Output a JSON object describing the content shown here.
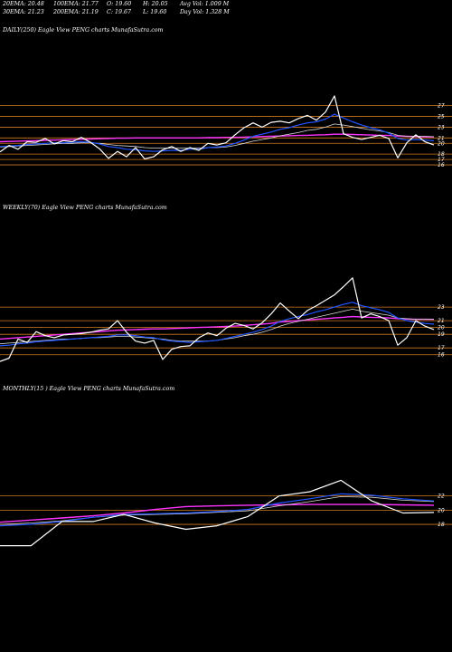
{
  "header": {
    "ema20": "20EMA: 20.48",
    "ema100": "100EMA: 21.77",
    "open": "O: 19.60",
    "high": "H: 20.05",
    "avg_vol": "Avg Vol: 1.009 M",
    "ema30": "30EMA: 21.23",
    "ema200": "200EMA: 21.19",
    "close": "C: 19.67",
    "low": "L: 19.60",
    "day_vol": "Day Vol: 1.328 M"
  },
  "colors": {
    "background": "#000000",
    "price": "#ffffff",
    "ema_fast": "#2255ff",
    "ema_slow": "#ff33ff",
    "ema_mid": "#d8d8d8",
    "level": "#d27a1c"
  },
  "chart_data": [
    {
      "type": "line",
      "label": "DAILY(250) Eagle  View  PENG charts MunafaSutra.com",
      "y_ticks": [
        "27",
        "25",
        "23",
        "21",
        "20",
        "18",
        "17",
        "16"
      ],
      "x": [
        0,
        10,
        20,
        30,
        40,
        50,
        60,
        70,
        80,
        90,
        100,
        110,
        120,
        130,
        140,
        150,
        160,
        170,
        180,
        190,
        200,
        210,
        220,
        230,
        240,
        250,
        260,
        270,
        280,
        290,
        300,
        310,
        320,
        330,
        340,
        350,
        360,
        370,
        380,
        390,
        400,
        410,
        420,
        430,
        440,
        450,
        460,
        470,
        480
      ],
      "series": [
        {
          "name": "Price",
          "values": [
            18.4,
            19.6,
            18.9,
            20.3,
            20.2,
            20.9,
            19.9,
            20.5,
            20.3,
            21.1,
            20.2,
            19.0,
            17.2,
            18.5,
            17.5,
            19.2,
            17.1,
            17.5,
            18.8,
            19.4,
            18.5,
            19.2,
            18.7,
            20.0,
            19.7,
            20.1,
            21.6,
            22.9,
            23.8,
            23.0,
            23.9,
            24.1,
            23.8,
            24.6,
            25.2,
            24.3,
            25.8,
            28.8,
            21.8,
            21.1,
            20.7,
            21.1,
            21.5,
            20.9,
            17.3,
            20.1,
            21.6,
            20.3,
            19.7
          ]
        },
        {
          "name": "EMA fast",
          "values": [
            19.4,
            19.5,
            19.6,
            19.8,
            19.9,
            20.0,
            20.1,
            20.1,
            20.2,
            20.3,
            20.2,
            19.9,
            19.4,
            19.2,
            18.9,
            18.8,
            18.6,
            18.5,
            18.6,
            18.7,
            18.7,
            18.9,
            18.9,
            19.2,
            19.3,
            19.5,
            20.0,
            20.6,
            21.3,
            21.7,
            22.1,
            22.6,
            22.9,
            23.4,
            23.8,
            24.0,
            24.5,
            25.4,
            24.7,
            24.0,
            23.4,
            22.9,
            22.5,
            21.9,
            20.9,
            20.6,
            20.7,
            20.6,
            20.48
          ]
        },
        {
          "name": "EMA mid",
          "values": [
            19.3,
            19.4,
            19.5,
            19.6,
            19.7,
            19.8,
            19.9,
            20.0,
            20.0,
            20.1,
            20.1,
            20.0,
            19.8,
            19.6,
            19.5,
            19.4,
            19.2,
            19.1,
            19.1,
            19.1,
            19.1,
            19.1,
            19.1,
            19.2,
            19.2,
            19.3,
            19.6,
            20.0,
            20.4,
            20.7,
            21.0,
            21.4,
            21.7,
            22.0,
            22.4,
            22.6,
            23.0,
            23.6,
            23.4,
            23.1,
            22.8,
            22.5,
            22.3,
            22.0,
            21.5,
            21.3,
            21.3,
            21.3,
            21.23
          ]
        },
        {
          "name": "EMA slow",
          "values": [
            20.3,
            20.35,
            20.4,
            20.45,
            20.5,
            20.55,
            20.6,
            20.65,
            20.7,
            20.75,
            20.8,
            20.85,
            20.9,
            20.95,
            20.95,
            21.0,
            21.0,
            21.0,
            21.0,
            21.0,
            21.0,
            21.0,
            21.0,
            21.05,
            21.05,
            21.1,
            21.1,
            21.15,
            21.2,
            21.25,
            21.3,
            21.35,
            21.4,
            21.45,
            21.5,
            21.55,
            21.6,
            21.7,
            21.7,
            21.65,
            21.6,
            21.55,
            21.5,
            21.45,
            21.35,
            21.3,
            21.25,
            21.22,
            21.19
          ]
        }
      ],
      "levels": [
        27,
        25,
        23,
        21,
        20,
        18,
        17,
        16
      ],
      "ylim": [
        15.0,
        29.8
      ]
    },
    {
      "type": "line",
      "label": "WEEKLY(70) Eagle  View  PENG charts MunafaSutra.com",
      "y_ticks": [
        "23",
        "21",
        "20",
        "19",
        "17",
        "16"
      ],
      "x": [
        0,
        10,
        20,
        30,
        40,
        50,
        60,
        70,
        80,
        90,
        100,
        110,
        120,
        130,
        140,
        150,
        160,
        170,
        180,
        190,
        200,
        210,
        220,
        230,
        240,
        250,
        260,
        270,
        280,
        290,
        300,
        310,
        320,
        330,
        340,
        350,
        360,
        370,
        380,
        390,
        400,
        410,
        420,
        430,
        440,
        450,
        460,
        470,
        480
      ],
      "series": [
        {
          "name": "Price",
          "values": [
            15.0,
            15.5,
            18.3,
            17.8,
            19.4,
            18.8,
            18.5,
            18.9,
            19.0,
            19.1,
            19.3,
            19.6,
            19.8,
            21.0,
            19.3,
            18.0,
            17.7,
            18.1,
            15.3,
            16.8,
            17.2,
            17.3,
            18.5,
            19.2,
            18.8,
            19.9,
            20.6,
            20.3,
            19.8,
            20.7,
            22.0,
            23.6,
            22.4,
            21.3,
            22.5,
            23.2,
            24.0,
            24.8,
            26.0,
            27.3,
            21.4,
            22.0,
            21.6,
            21.0,
            17.4,
            18.5,
            21.0,
            20.2,
            19.7
          ]
        },
        {
          "name": "EMA fast",
          "values": [
            17.3,
            17.4,
            17.6,
            17.7,
            17.9,
            18.0,
            18.1,
            18.2,
            18.3,
            18.4,
            18.5,
            18.6,
            18.7,
            18.9,
            18.9,
            18.8,
            18.6,
            18.5,
            18.2,
            18.0,
            17.9,
            17.8,
            17.9,
            18.0,
            18.1,
            18.4,
            18.7,
            19.0,
            19.3,
            19.7,
            20.2,
            20.9,
            21.3,
            21.6,
            21.9,
            22.3,
            22.6,
            23.0,
            23.4,
            23.7,
            23.2,
            22.9,
            22.6,
            22.2,
            21.4,
            21.0,
            20.8,
            20.6,
            20.48
          ]
        },
        {
          "name": "EMA mid",
          "values": [
            17.6,
            17.7,
            17.8,
            17.9,
            18.0,
            18.1,
            18.2,
            18.3,
            18.3,
            18.4,
            18.5,
            18.5,
            18.6,
            18.7,
            18.7,
            18.6,
            18.5,
            18.4,
            18.3,
            18.1,
            18.0,
            18.0,
            18.0,
            18.0,
            18.1,
            18.3,
            18.5,
            18.8,
            19.0,
            19.3,
            19.7,
            20.2,
            20.6,
            20.9,
            21.2,
            21.5,
            21.8,
            22.1,
            22.4,
            22.7,
            22.4,
            22.2,
            22.0,
            21.8,
            21.4,
            21.3,
            21.2,
            21.2,
            21.23
          ]
        },
        {
          "name": "EMA slow",
          "values": [
            18.3,
            18.4,
            18.5,
            18.6,
            18.7,
            18.8,
            18.9,
            19.0,
            19.1,
            19.2,
            19.3,
            19.4,
            19.5,
            19.6,
            19.65,
            19.7,
            19.75,
            19.8,
            19.8,
            19.85,
            19.9,
            19.95,
            20.0,
            20.05,
            20.1,
            20.15,
            20.2,
            20.3,
            20.4,
            20.5,
            20.6,
            20.8,
            20.9,
            21.0,
            21.1,
            21.2,
            21.3,
            21.4,
            21.5,
            21.6,
            21.55,
            21.5,
            21.45,
            21.4,
            21.3,
            21.25,
            21.2,
            21.2,
            21.19
          ]
        }
      ],
      "levels": [
        23,
        21,
        20,
        19,
        17,
        16
      ],
      "ylim": [
        14.5,
        28.2
      ]
    },
    {
      "type": "line",
      "label": "MONTHLY(15                     ) Eagle  View  PENG charts MunafaSutra.com",
      "y_ticks": [
        "22",
        "20",
        "18"
      ],
      "x": [
        0,
        1,
        2,
        3,
        4,
        5,
        6,
        7,
        8,
        9,
        10,
        11,
        12,
        13,
        14
      ],
      "series": [
        {
          "name": "Price",
          "values": [
            15.0,
            15.0,
            18.4,
            18.4,
            19.4,
            18.2,
            17.3,
            17.8,
            19.1,
            22.0,
            22.6,
            24.2,
            21.3,
            19.6,
            19.67
          ]
        },
        {
          "name": "EMA fast",
          "values": [
            17.8,
            18.0,
            18.4,
            19.0,
            19.4,
            19.5,
            19.6,
            19.8,
            20.1,
            21.0,
            21.6,
            22.3,
            22.1,
            21.6,
            21.3
          ]
        },
        {
          "name": "EMA mid",
          "values": [
            18.0,
            18.2,
            18.5,
            19.0,
            19.3,
            19.4,
            19.5,
            19.7,
            19.9,
            20.6,
            21.2,
            21.9,
            21.8,
            21.4,
            21.2
          ]
        },
        {
          "name": "EMA slow",
          "values": [
            18.3,
            18.6,
            18.9,
            19.2,
            19.6,
            20.1,
            20.5,
            20.6,
            20.7,
            20.75,
            20.8,
            20.8,
            20.8,
            20.75,
            20.7
          ]
        }
      ],
      "levels": [
        22,
        20,
        18
      ],
      "ylim": [
        13.8,
        26.8
      ]
    }
  ]
}
